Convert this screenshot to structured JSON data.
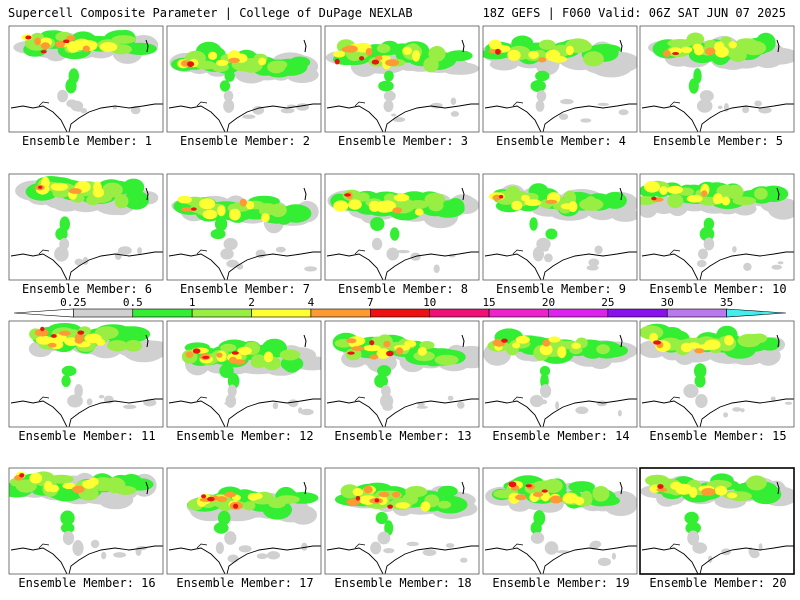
{
  "header": {
    "title_left": "Supercell Composite Parameter | College of DuPage NEXLAB",
    "title_right": "18Z GEFS | F060 Valid: 06Z SAT JUN 07 2025"
  },
  "colorbar": {
    "levels": [
      "0.25",
      "0.5",
      "1",
      "2",
      "4",
      "7",
      "10",
      "15",
      "20",
      "25",
      "30",
      "35"
    ],
    "colors": [
      "#ffffff",
      "#d0d0d0",
      "#33ee33",
      "#99ee44",
      "#ffff33",
      "#ff9933",
      "#ee1111",
      "#ee1177",
      "#ee22cc",
      "#dd22ee",
      "#8811ee",
      "#bb77ee",
      "#44eeee"
    ]
  },
  "members": [
    {
      "label": "Ensemble Member: 1"
    },
    {
      "label": "Ensemble Member: 2"
    },
    {
      "label": "Ensemble Member: 3"
    },
    {
      "label": "Ensemble Member: 4"
    },
    {
      "label": "Ensemble Member: 5"
    },
    {
      "label": "Ensemble Member: 6"
    },
    {
      "label": "Ensemble Member: 7"
    },
    {
      "label": "Ensemble Member: 8"
    },
    {
      "label": "Ensemble Member: 9"
    },
    {
      "label": "Ensemble Member: 10"
    },
    {
      "label": "Ensemble Member: 11"
    },
    {
      "label": "Ensemble Member: 12"
    },
    {
      "label": "Ensemble Member: 13"
    },
    {
      "label": "Ensemble Member: 14"
    },
    {
      "label": "Ensemble Member: 15"
    },
    {
      "label": "Ensemble Member: 16"
    },
    {
      "label": "Ensemble Member: 17"
    },
    {
      "label": "Ensemble Member: 18"
    },
    {
      "label": "Ensemble Member: 19"
    },
    {
      "label": "Ensemble Member: 20"
    }
  ],
  "selected_member": 20
}
